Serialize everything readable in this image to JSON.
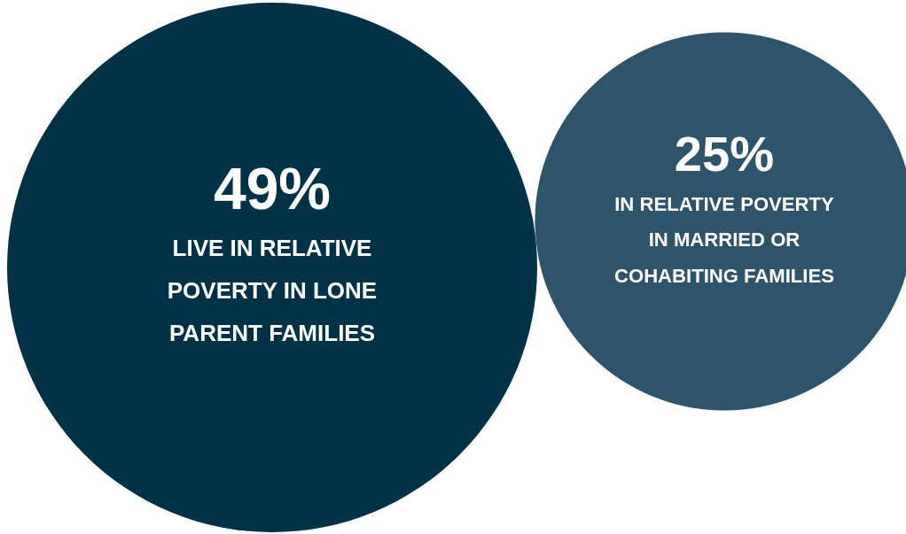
{
  "chart_data": {
    "type": "other",
    "categories": [
      "LIVE IN RELATIVE POVERTY IN LONE PARENT FAMILIES",
      "IN RELATIVE POVERTY IN MARRIED OR COHABITING FAMILIES"
    ],
    "values": [
      49,
      25
    ],
    "value_labels": [
      "49%",
      "25%"
    ],
    "colors": [
      "#003247",
      "#2e546b"
    ]
  }
}
